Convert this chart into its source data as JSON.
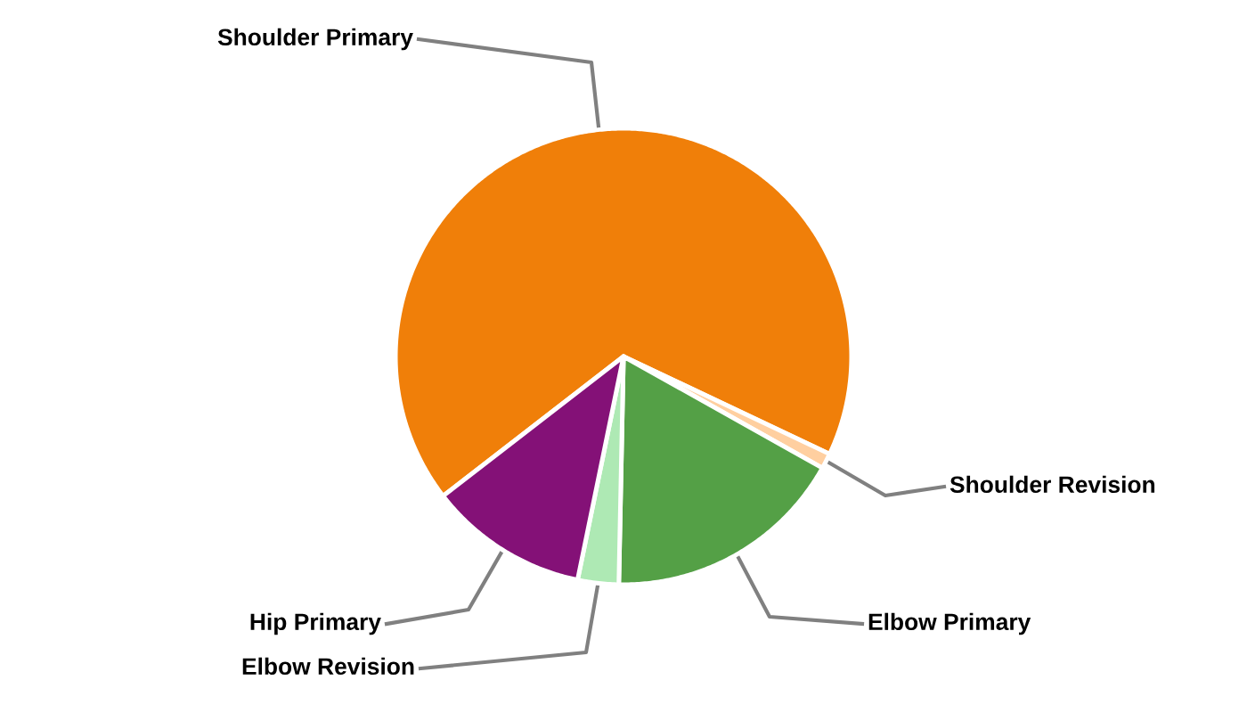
{
  "chart_data": {
    "type": "pie",
    "categories": [
      "Shoulder Primary",
      "Shoulder Revision",
      "Elbow Primary",
      "Elbow Revision",
      "Hip Primary"
    ],
    "values": [
      67.5,
      1.1,
      17.2,
      2.9,
      11.3
    ],
    "colors": [
      "#f07f09",
      "#ffcfa0",
      "#54a046",
      "#aee9b4",
      "#841177"
    ]
  }
}
